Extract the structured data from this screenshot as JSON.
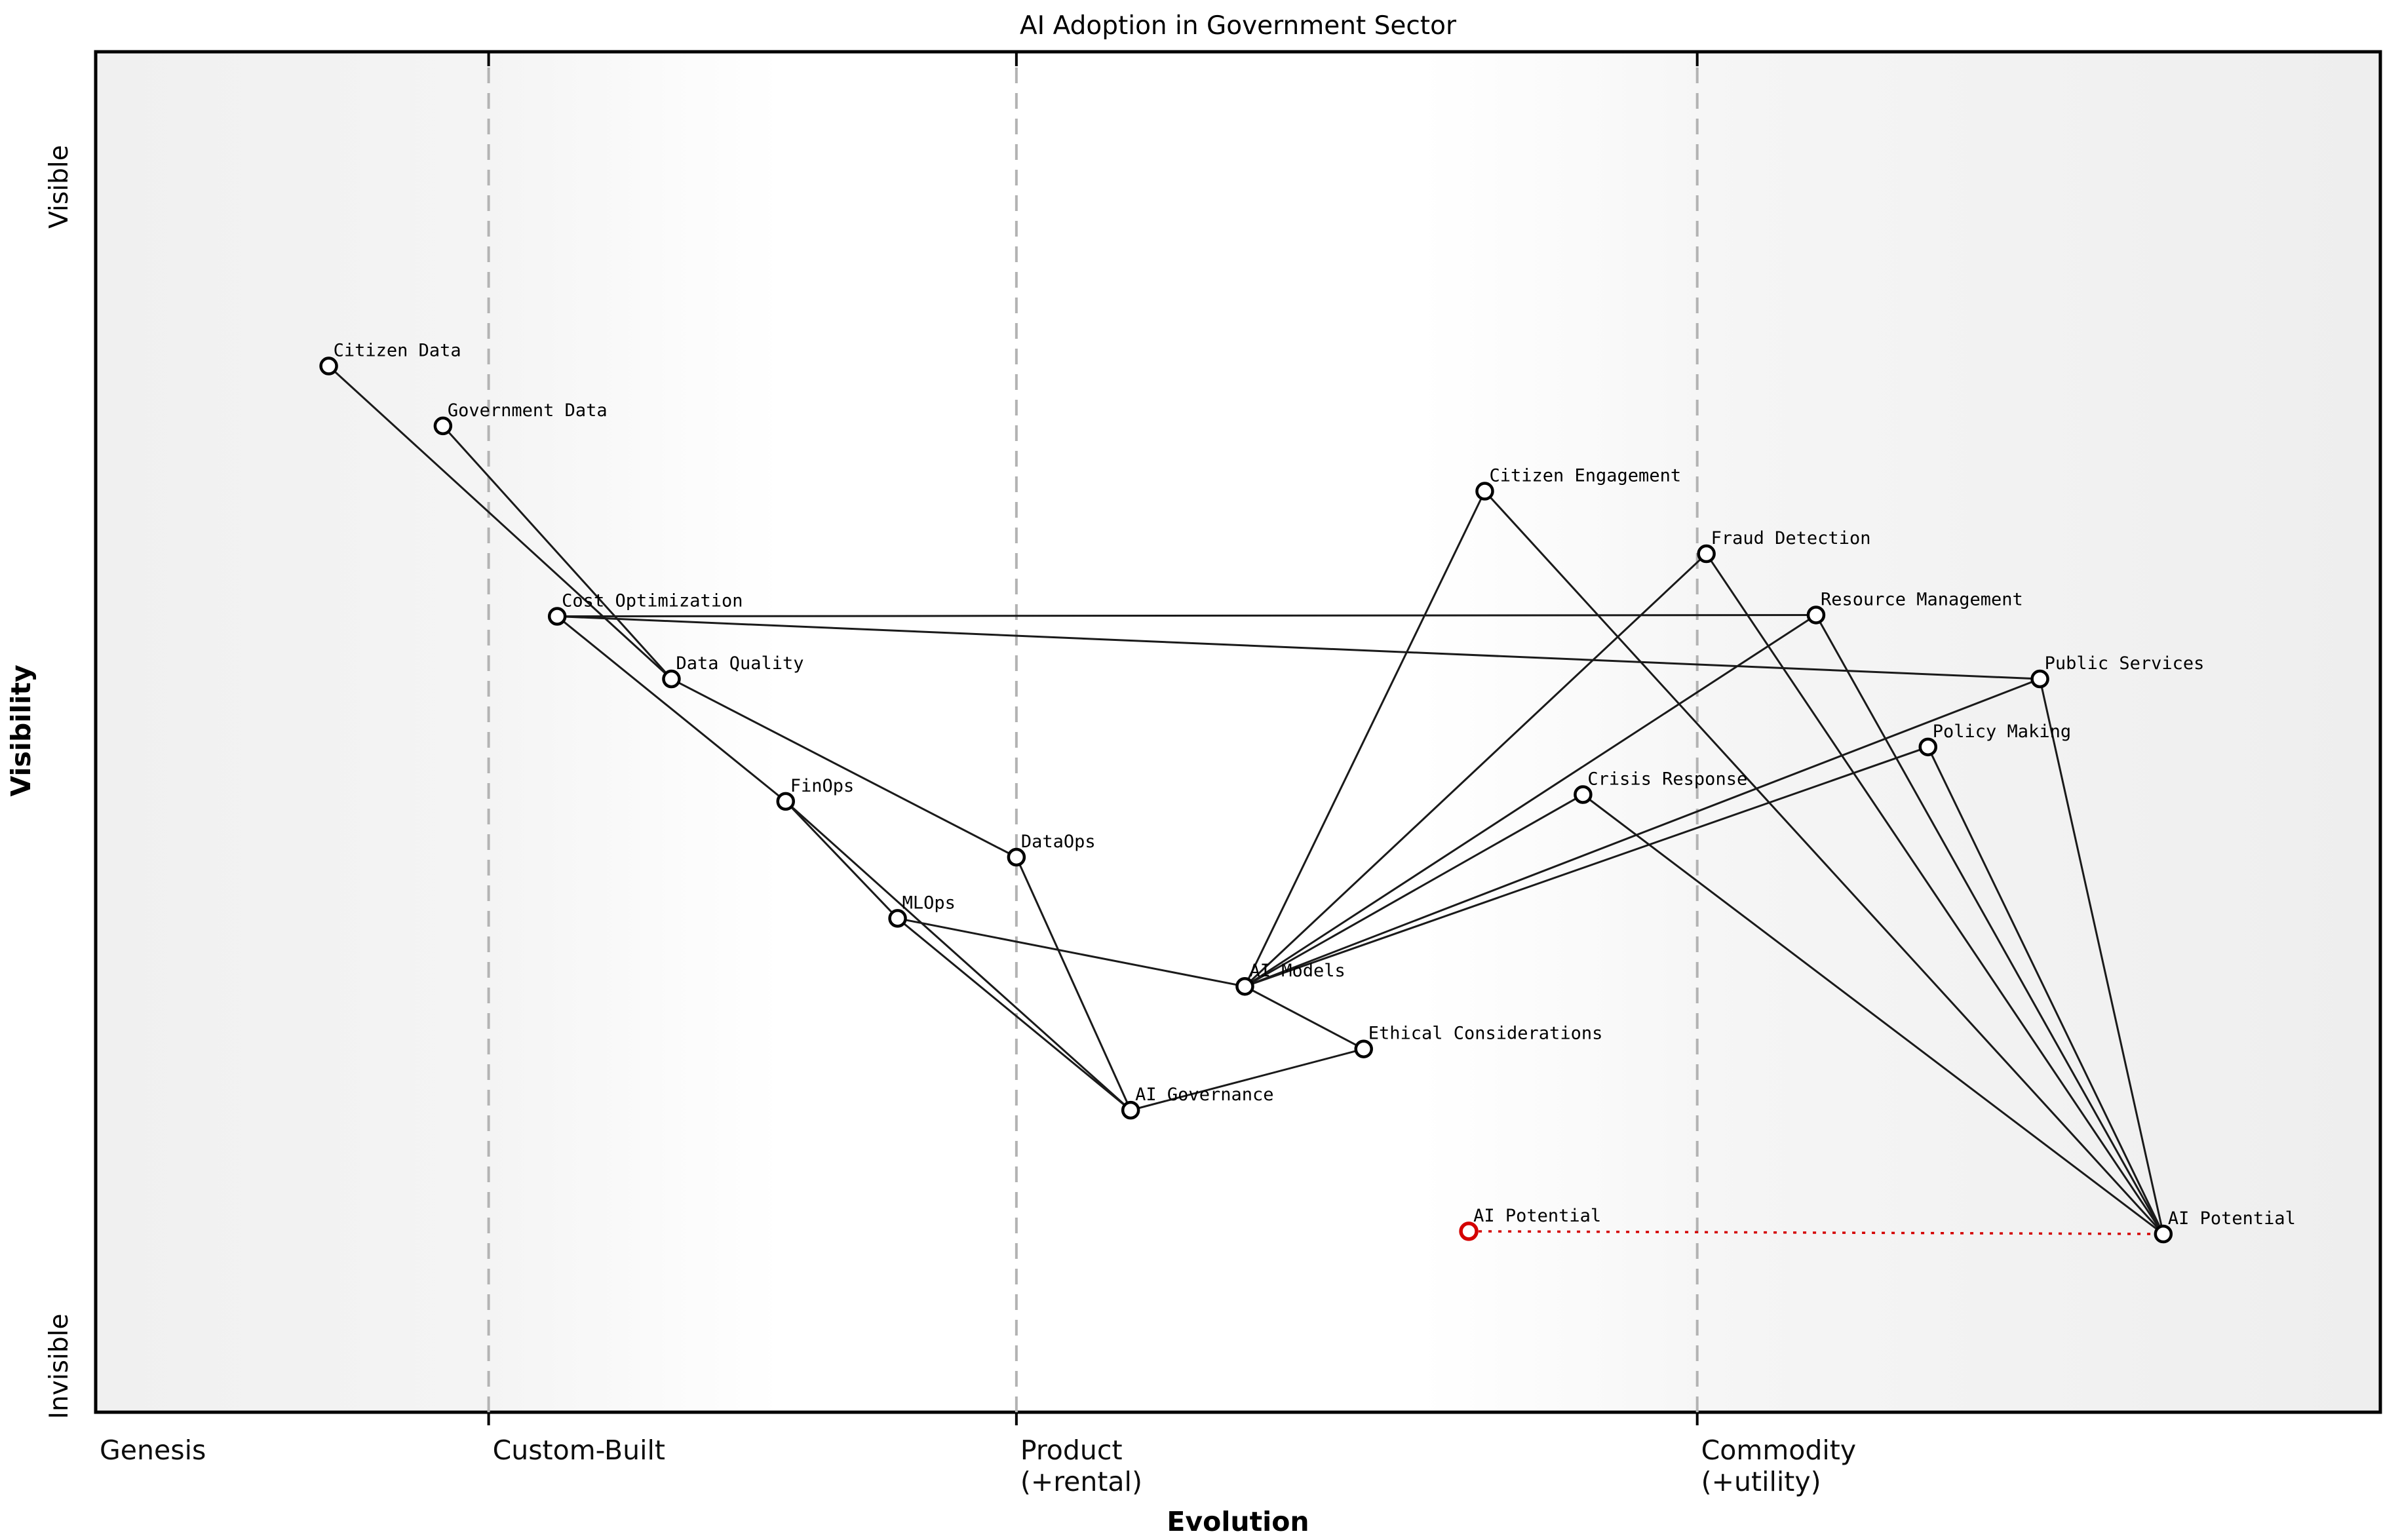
{
  "title": "AI Adoption in Government Sector",
  "axes": {
    "x_label": "Evolution",
    "y_label": "Visibility",
    "y_top_label": "Visible",
    "y_bottom_label": "Invisible"
  },
  "colors": {
    "node_stroke": "#000000",
    "node_fill": "#ffffff",
    "edge": "#1a1a1a",
    "zone_line": "#b3b3b3",
    "movement": "#d40000",
    "zone_gray": "#f0f0f0",
    "zone_white": "#ffffff"
  },
  "chart_data": {
    "type": "scatter",
    "subtype": "wardley-map",
    "title": "AI Adoption in Government Sector",
    "xlabel": "Evolution",
    "ylabel": "Visibility",
    "x_axis_range": [
      "Genesis",
      "Commodity (+utility)"
    ],
    "y_axis_range": [
      "Invisible",
      "Visible"
    ],
    "grid": "vertical-stage-boundaries",
    "stages": [
      {
        "label": "Genesis",
        "label2": "",
        "position": 0.0,
        "boundary_line": false
      },
      {
        "label": "Custom-Built",
        "label2": "",
        "position": 0.172,
        "boundary_line": true
      },
      {
        "label": "Product",
        "label2": "(+rental)",
        "position": 0.403,
        "boundary_line": true
      },
      {
        "label": "Commodity",
        "label2": "(+utility)",
        "position": 0.701,
        "boundary_line": true
      }
    ],
    "nodes": [
      {
        "id": "citizen-data",
        "label": "Citizen Data",
        "evolution": 0.102,
        "visibility": 0.769,
        "color": "black"
      },
      {
        "id": "government-data",
        "label": "Government Data",
        "evolution": 0.152,
        "visibility": 0.725,
        "color": "black"
      },
      {
        "id": "citizen-engagement",
        "label": "Citizen Engagement",
        "evolution": 0.608,
        "visibility": 0.677,
        "color": "black"
      },
      {
        "id": "fraud-detection",
        "label": "Fraud Detection",
        "evolution": 0.705,
        "visibility": 0.631,
        "color": "black"
      },
      {
        "id": "cost-optimization",
        "label": "Cost Optimization",
        "evolution": 0.202,
        "visibility": 0.585,
        "color": "black"
      },
      {
        "id": "resource-management",
        "label": "Resource Management",
        "evolution": 0.753,
        "visibility": 0.586,
        "color": "black"
      },
      {
        "id": "data-quality",
        "label": "Data Quality",
        "evolution": 0.252,
        "visibility": 0.539,
        "color": "black"
      },
      {
        "id": "public-services",
        "label": "Public Services",
        "evolution": 0.851,
        "visibility": 0.539,
        "color": "black"
      },
      {
        "id": "policy-making",
        "label": "Policy Making",
        "evolution": 0.802,
        "visibility": 0.489,
        "color": "black"
      },
      {
        "id": "finops",
        "label": "FinOps",
        "evolution": 0.302,
        "visibility": 0.449,
        "color": "black"
      },
      {
        "id": "crisis-response",
        "label": "Crisis Response",
        "evolution": 0.651,
        "visibility": 0.454,
        "color": "black"
      },
      {
        "id": "dataops",
        "label": "DataOps",
        "evolution": 0.403,
        "visibility": 0.408,
        "color": "black"
      },
      {
        "id": "mlops",
        "label": "MLOps",
        "evolution": 0.351,
        "visibility": 0.363,
        "color": "black"
      },
      {
        "id": "ai-models",
        "label": "AI Models",
        "evolution": 0.503,
        "visibility": 0.313,
        "color": "black"
      },
      {
        "id": "ethical-considerations",
        "label": "Ethical Considerations",
        "evolution": 0.555,
        "visibility": 0.267,
        "color": "black"
      },
      {
        "id": "ai-governance",
        "label": "AI Governance",
        "evolution": 0.453,
        "visibility": 0.222,
        "color": "black"
      },
      {
        "id": "ai-potential-current",
        "label": "AI Potential",
        "evolution": 0.601,
        "visibility": 0.133,
        "color": "red"
      },
      {
        "id": "ai-potential-future",
        "label": "AI Potential",
        "evolution": 0.905,
        "visibility": 0.131,
        "color": "black"
      }
    ],
    "edges": [
      {
        "from": "citizen-data",
        "to": "data-quality"
      },
      {
        "from": "government-data",
        "to": "data-quality"
      },
      {
        "from": "cost-optimization",
        "to": "finops"
      },
      {
        "from": "cost-optimization",
        "to": "resource-management"
      },
      {
        "from": "cost-optimization",
        "to": "public-services"
      },
      {
        "from": "data-quality",
        "to": "dataops"
      },
      {
        "from": "finops",
        "to": "mlops"
      },
      {
        "from": "finops",
        "to": "ai-governance"
      },
      {
        "from": "mlops",
        "to": "ai-models"
      },
      {
        "from": "mlops",
        "to": "ai-governance"
      },
      {
        "from": "dataops",
        "to": "ai-governance"
      },
      {
        "from": "ai-models",
        "to": "ethical-considerations"
      },
      {
        "from": "ethical-considerations",
        "to": "ai-governance"
      },
      {
        "from": "citizen-engagement",
        "to": "ai-models"
      },
      {
        "from": "fraud-detection",
        "to": "ai-models"
      },
      {
        "from": "resource-management",
        "to": "ai-models"
      },
      {
        "from": "crisis-response",
        "to": "ai-models"
      },
      {
        "from": "policy-making",
        "to": "ai-models"
      },
      {
        "from": "public-services",
        "to": "ai-models"
      },
      {
        "from": "citizen-engagement",
        "to": "ai-potential-future"
      },
      {
        "from": "fraud-detection",
        "to": "ai-potential-future"
      },
      {
        "from": "resource-management",
        "to": "ai-potential-future"
      },
      {
        "from": "crisis-response",
        "to": "ai-potential-future"
      },
      {
        "from": "policy-making",
        "to": "ai-potential-future"
      },
      {
        "from": "public-services",
        "to": "ai-potential-future"
      }
    ],
    "movement": [
      {
        "from": "ai-potential-current",
        "to": "ai-potential-future",
        "style": "dotted",
        "color": "#d40000"
      }
    ],
    "legend": "none"
  }
}
